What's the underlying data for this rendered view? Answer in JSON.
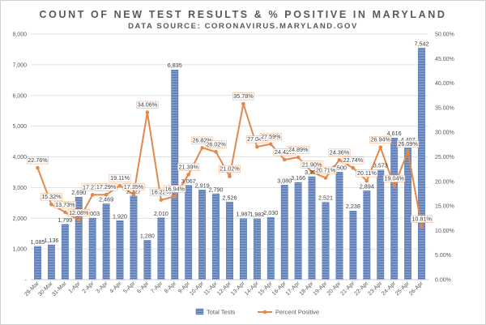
{
  "chart_data": {
    "type": "bar+line",
    "title": "COUNT OF NEW TEST RESULTS & % POSITIVE IN MARYLAND",
    "subtitle": "DATA SOURCE: CORONAVIRUS.MARYLAND.GOV",
    "categories": [
      "29-Mar",
      "30-Mar",
      "31-Mar",
      "1-Apr",
      "2-Apr",
      "3-Apr",
      "4-Apr",
      "5-Apr",
      "6-Apr",
      "7-Apr",
      "8-Apr",
      "9-Apr",
      "10-Apr",
      "11-Apr",
      "12-Apr",
      "13-Apr",
      "14-Apr",
      "15-Apr",
      "16-Apr",
      "17-Apr",
      "18-Apr",
      "19-Apr",
      "20-Apr",
      "21-Apr",
      "22-Apr",
      "23-Apr",
      "24-Apr",
      "25-Apr",
      "26-Apr"
    ],
    "series": [
      {
        "name": "Total Tests",
        "axis": "left",
        "values": [
          1085,
          1136,
          1799,
          2690,
          2003,
          2469,
          1920,
          2727,
          1280,
          2010,
          6835,
          3067,
          2919,
          2790,
          2526,
          1987,
          1982,
          2030,
          3080,
          3166,
          3356,
          2521,
          3500,
          2238,
          2894,
          3573,
          4616,
          4407,
          7542
        ],
        "labels": [
          "1,085",
          "1,136",
          "1,799",
          "2,690",
          "2,003",
          "2,469",
          "1,920",
          "2,727",
          "1,280",
          "2,010",
          "6,835",
          "3,067",
          "2,919",
          "2,790",
          "2,526",
          "1,987",
          "1,982",
          "2,030",
          "3,080",
          "3,166",
          "3,356",
          "2,521",
          "3,500",
          "2,238",
          "2,894",
          "3,573",
          "4,616",
          "4,407",
          "7,542"
        ],
        "color": "#5b7fc7"
      },
      {
        "name": "Percent Positive",
        "axis": "right",
        "values": [
          22.76,
          15.32,
          13.73,
          12.08,
          17.27,
          17.29,
          19.11,
          17.35,
          34.06,
          16.22,
          16.94,
          21.39,
          26.82,
          26.02,
          21.02,
          35.78,
          27.04,
          27.59,
          24.42,
          24.89,
          21.9,
          20.71,
          24.36,
          22.74,
          20.11,
          26.94,
          19.04,
          26.09,
          10.81
        ],
        "labels": [
          "22.76%",
          "15.32%",
          "13.73%",
          "12.08%",
          "17.27%",
          "17.29%",
          "19.11%",
          "17.35%",
          "34.06%",
          "16.22%",
          "16.94%",
          "21.39%",
          "26.82%",
          "26.02%",
          "21.02%",
          "35.78%",
          "27.04%",
          "27.59%",
          "24.42%",
          "24.89%",
          "21.90%",
          "20.71%",
          "24.36%",
          "22.74%",
          "20.11%",
          "26.94%",
          "19.04%",
          "26.09%",
          "10.81%"
        ],
        "color": "#e0894a"
      }
    ],
    "y_left": {
      "ylim": [
        0,
        8000
      ],
      "ticks": [
        0,
        1000,
        2000,
        3000,
        4000,
        5000,
        6000,
        7000,
        8000
      ],
      "tick_labels": [
        "-",
        "1,000",
        "2,000",
        "3,000",
        "4,000",
        "5,000",
        "6,000",
        "7,000",
        "8,000"
      ]
    },
    "y_right": {
      "ylim": [
        0,
        50
      ],
      "ticks": [
        0,
        5,
        10,
        15,
        20,
        25,
        30,
        35,
        40,
        45,
        50
      ],
      "tick_labels": [
        "0.00%",
        "5.00%",
        "10.00%",
        "15.00%",
        "20.00%",
        "25.00%",
        "30.00%",
        "35.00%",
        "40.00%",
        "45.00%",
        "50.00%"
      ]
    },
    "grid": true,
    "legend": {
      "placement": "bottom-center"
    }
  }
}
